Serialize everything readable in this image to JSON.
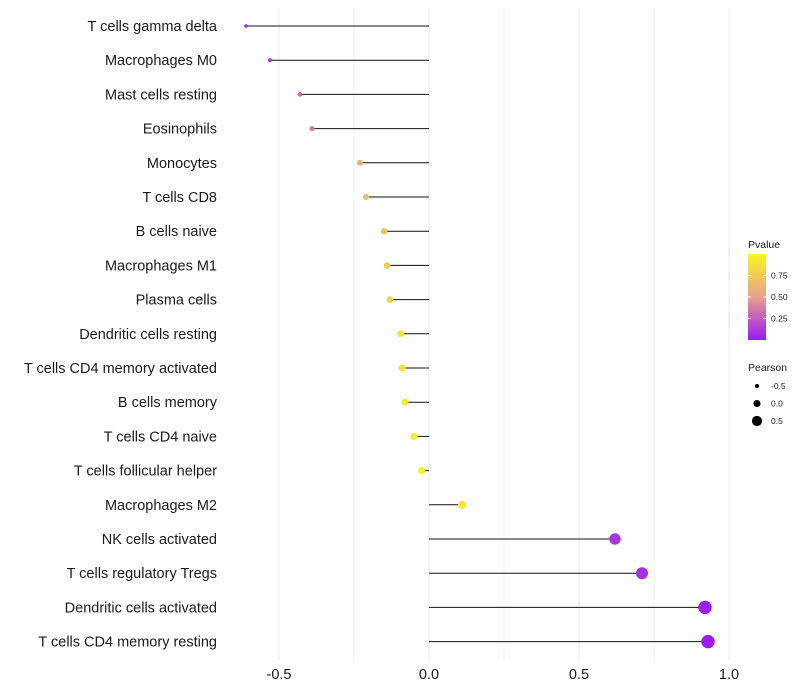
{
  "chart_data": {
    "type": "lollipop",
    "title": "",
    "xlabel": "",
    "ylabel": "",
    "xlim": [
      -0.7,
      1.0
    ],
    "x_ticks": [
      -0.5,
      0.0,
      0.5,
      1.0
    ],
    "x_tick_labels": [
      "-0.5",
      "0.0",
      "0.5",
      "1.0"
    ],
    "baseline": 0.0,
    "grid": true,
    "categories": [
      "T cells gamma delta",
      "Macrophages M0",
      "Mast cells resting",
      "Eosinophils",
      "Monocytes",
      "T cells CD8",
      "B cells naive",
      "Macrophages M1",
      "Plasma cells",
      "Dendritic cells resting",
      "T cells CD4 memory activated",
      "B cells memory",
      "T cells CD4 naive",
      "T cells follicular helper",
      "Macrophages M2",
      "NK cells activated",
      "T cells regulatory  Tregs",
      "Dendritic cells activated",
      "T cells CD4 memory resting"
    ],
    "values": [
      -0.61,
      -0.53,
      -0.43,
      -0.39,
      -0.23,
      -0.21,
      -0.15,
      -0.14,
      -0.13,
      -0.095,
      -0.09,
      -0.08,
      -0.05,
      -0.025,
      0.11,
      0.62,
      0.71,
      0.92,
      0.93
    ],
    "pvalues": [
      0.05,
      0.12,
      0.3,
      0.35,
      0.6,
      0.65,
      0.7,
      0.75,
      0.78,
      0.9,
      0.88,
      0.92,
      0.95,
      0.97,
      0.9,
      0.1,
      0.08,
      0.02,
      0.01
    ],
    "color_scale": {
      "low": "#9b19f5",
      "mid": "#e8a08c",
      "high": "#fcf51e"
    },
    "legends": {
      "color": {
        "title": "Pvalue",
        "ticks": [
          0.25,
          0.5,
          0.75
        ],
        "labels": [
          "0.25",
          "0.50",
          "0.75"
        ]
      },
      "size": {
        "title": "Pearson",
        "values": [
          -0.5,
          0.0,
          0.5
        ],
        "labels": [
          "-0.5",
          "0.0",
          "0.5"
        ]
      }
    },
    "legend_position": "right"
  }
}
